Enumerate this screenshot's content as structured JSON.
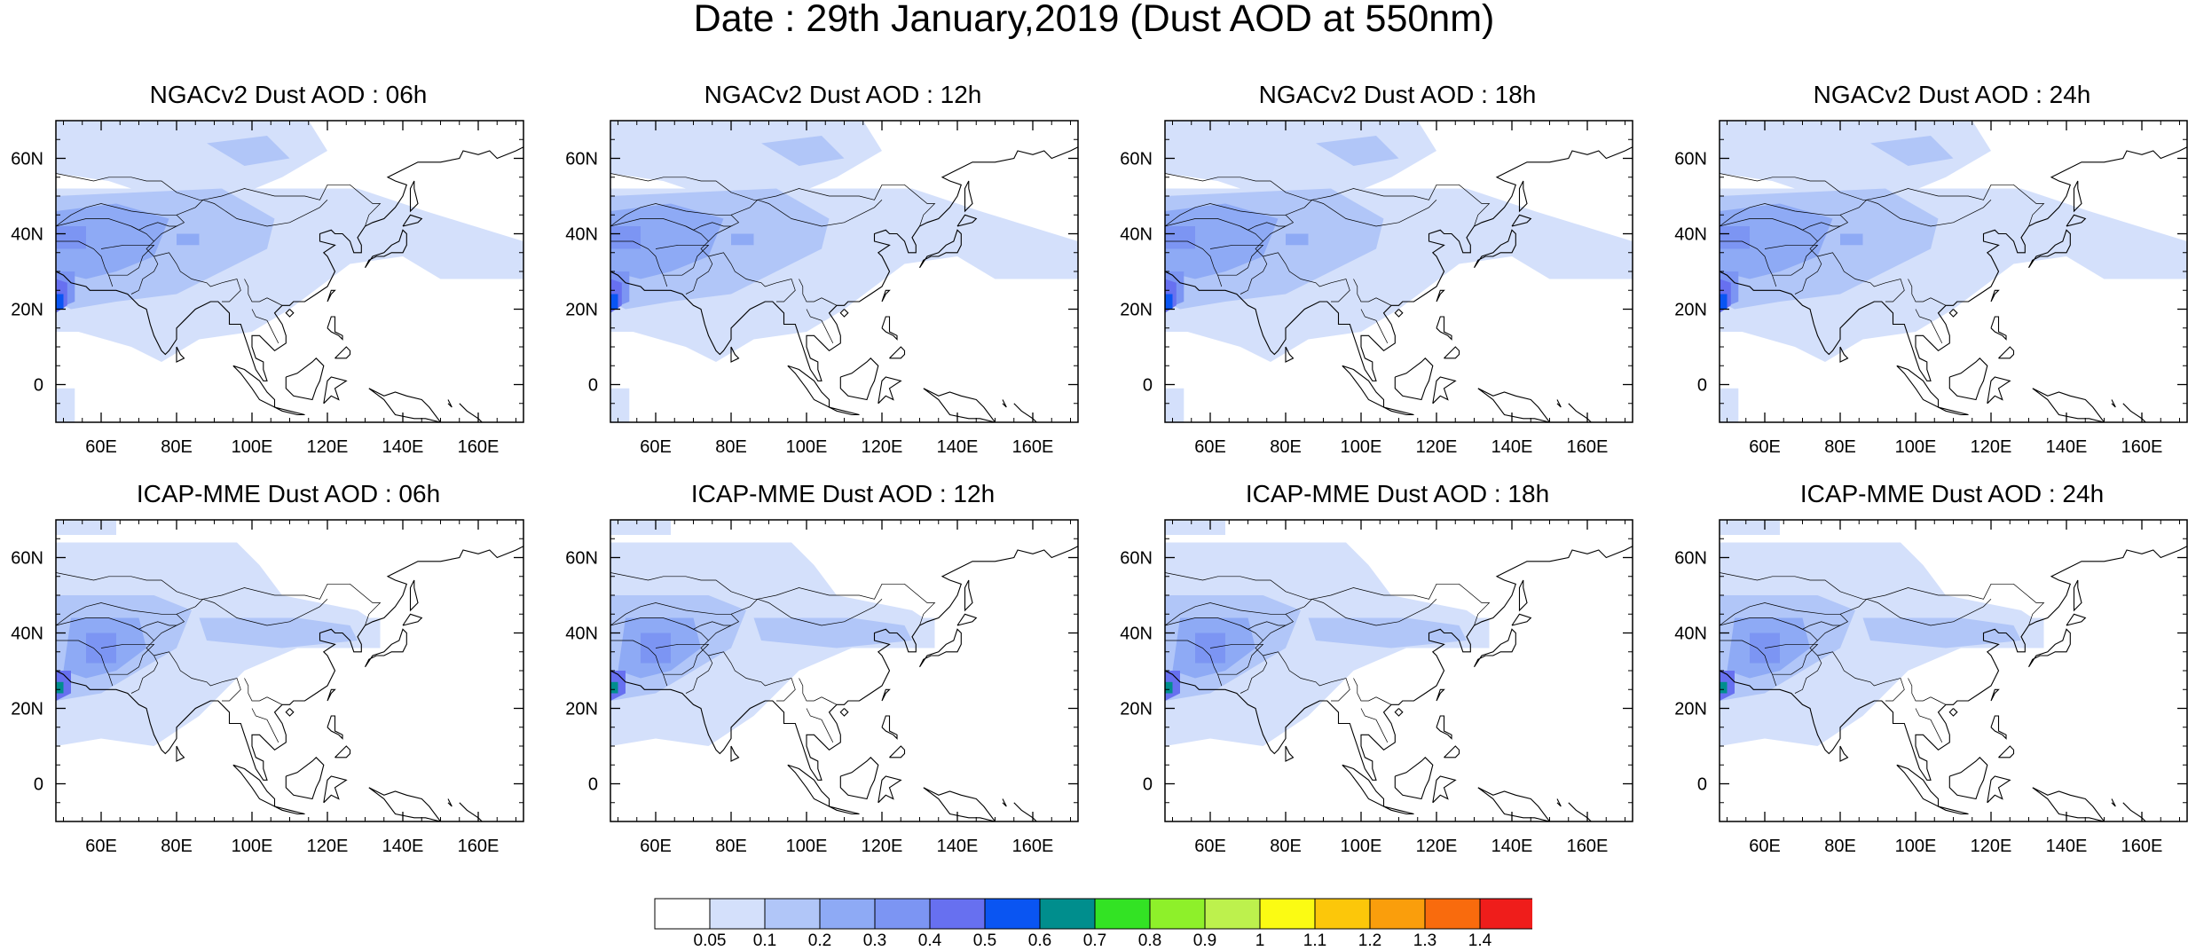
{
  "title": "Date : 29th January,2019 (Dust AOD at 550nm)",
  "colors": {
    "palette": [
      "#ffffff",
      "#d4e0fb",
      "#b1c6f8",
      "#8eaaf5",
      "#7c95f3",
      "#6770f0",
      "#0a55f2",
      "#008e8d",
      "#33e324",
      "#8ef02a",
      "#bdf14d",
      "#fbfb13",
      "#fcc70a",
      "#fa9e0c",
      "#f96b0d",
      "#ef1d1b"
    ],
    "land_outline": "#000000"
  },
  "panels": [
    {
      "title": "NGACv2 Dust AOD : 06h"
    },
    {
      "title": "NGACv2 Dust AOD : 12h"
    },
    {
      "title": "NGACv2 Dust AOD : 18h"
    },
    {
      "title": "NGACv2 Dust AOD : 24h"
    },
    {
      "title": "ICAP-MME Dust AOD : 06h"
    },
    {
      "title": "ICAP-MME Dust AOD : 12h"
    },
    {
      "title": "ICAP-MME Dust AOD : 18h"
    },
    {
      "title": "ICAP-MME Dust AOD : 24h"
    }
  ],
  "map": {
    "lon_range": [
      48,
      172
    ],
    "lat_range": [
      -10,
      70
    ],
    "lon_ticks": [
      {
        "v": 60,
        "label": "60E"
      },
      {
        "v": 80,
        "label": "80E"
      },
      {
        "v": 100,
        "label": "100E"
      },
      {
        "v": 120,
        "label": "120E"
      },
      {
        "v": 140,
        "label": "140E"
      },
      {
        "v": 160,
        "label": "160E"
      }
    ],
    "lat_ticks": [
      {
        "v": 60,
        "label": "60N"
      },
      {
        "v": 40,
        "label": "40N"
      },
      {
        "v": 20,
        "label": "20N"
      },
      {
        "v": 0,
        "label": "0"
      }
    ]
  },
  "colorbar": {
    "labels": [
      "0.05",
      "0.1",
      "0.2",
      "0.3",
      "0.4",
      "0.5",
      "0.6",
      "0.7",
      "0.8",
      "0.9",
      "1",
      "1.1",
      "1.2",
      "1.3",
      "1.4"
    ]
  }
}
